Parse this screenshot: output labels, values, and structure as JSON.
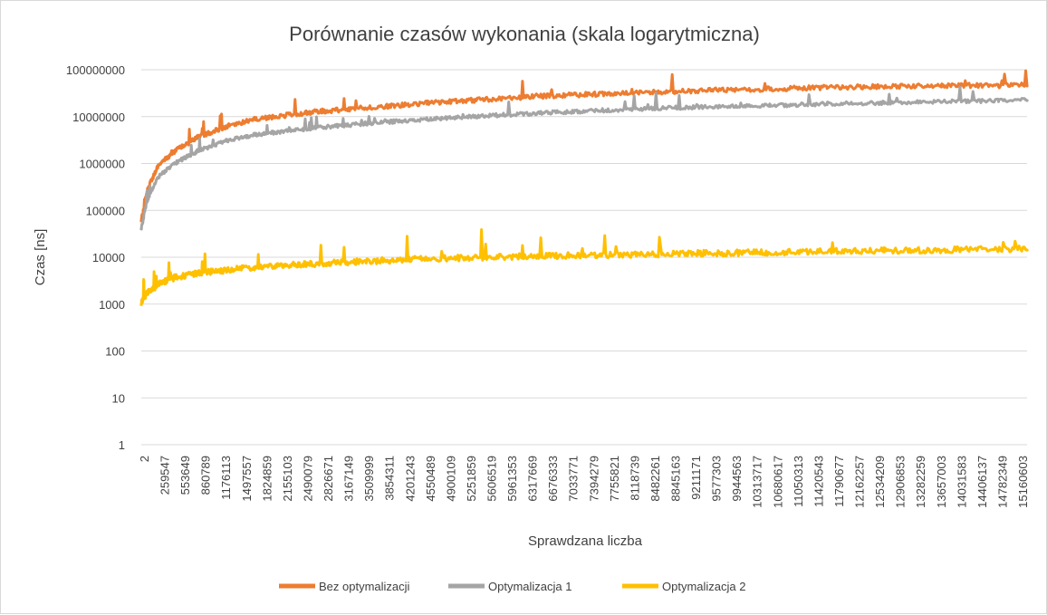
{
  "chart_data": {
    "type": "line",
    "title": "Porównanie czasów wykonania (skala logarytmiczna)",
    "xlabel": "Sprawdzana liczba",
    "ylabel": "Czas [ns]",
    "yscale": "log",
    "ylim": [
      1,
      100000000
    ],
    "ytick_labels": [
      "1",
      "10",
      "100",
      "1000",
      "10000",
      "100000",
      "1000000",
      "10000000",
      "100000000"
    ],
    "xlim": [
      2,
      15500000
    ],
    "xtick_labels": [
      "2",
      "259547",
      "553649",
      "860789",
      "1176113",
      "1497557",
      "1824859",
      "2155103",
      "2490079",
      "2826671",
      "3167149",
      "3509999",
      "3854311",
      "4201243",
      "4550489",
      "4900109",
      "5251859",
      "5606519",
      "5961353",
      "6317669",
      "6676333",
      "7033771",
      "7394279",
      "7755821",
      "8118739",
      "8482261",
      "8845163",
      "9211171",
      "9577303",
      "9944563",
      "10313717",
      "10680617",
      "11050313",
      "11420543",
      "11790677",
      "12162257",
      "12534209",
      "12906853",
      "13282259",
      "13657003",
      "14031583",
      "14406137",
      "14782349",
      "15160603"
    ],
    "grid": true,
    "legend_position": "bottom",
    "series": [
      {
        "name": "Bez optymalizacji",
        "color": "#ed7d31",
        "x": [
          2,
          100000,
          300000,
          600000,
          1000000,
          1500000,
          2000000,
          3000000,
          4000000,
          5000000,
          6000000,
          7000000,
          8000000,
          9000000,
          10000000,
          11000000,
          12000000,
          13000000,
          14000000,
          15000000,
          15500000
        ],
        "y": [
          60000,
          250000,
          900000,
          1800000,
          3500000,
          6000000,
          8500000,
          12000000,
          15000000,
          18500000,
          22000000,
          26000000,
          29000000,
          32000000,
          35000000,
          37000000,
          40000000,
          42000000,
          43000000,
          44000000,
          45000000
        ]
      },
      {
        "name": "Optymalizacja 1",
        "color": "#a5a5a5",
        "x": [
          2,
          100000,
          300000,
          600000,
          1000000,
          1500000,
          2000000,
          3000000,
          4000000,
          5000000,
          6000000,
          7000000,
          8000000,
          9000000,
          10000000,
          11000000,
          12000000,
          13000000,
          14000000,
          15000000,
          15500000
        ],
        "y": [
          40000,
          150000,
          500000,
          1000000,
          1800000,
          3000000,
          4000000,
          5500000,
          7000000,
          8500000,
          10000000,
          11500000,
          13000000,
          14500000,
          15500000,
          16500000,
          18000000,
          19000000,
          20000000,
          21000000,
          22000000
        ]
      },
      {
        "name": "Optymalizacja 2",
        "color": "#ffc000",
        "x": [
          2,
          100000,
          300000,
          600000,
          1000000,
          1500000,
          2000000,
          3000000,
          4000000,
          5000000,
          6000000,
          7000000,
          8000000,
          9000000,
          10000000,
          11000000,
          12000000,
          13000000,
          14000000,
          15000000,
          15500000
        ],
        "y": [
          1000,
          1600,
          2500,
          3500,
          4300,
          5000,
          5800,
          6800,
          7800,
          8700,
          9400,
          10000,
          10500,
          11000,
          11500,
          12000,
          12500,
          13000,
          13500,
          14000,
          14200
        ]
      }
    ]
  }
}
